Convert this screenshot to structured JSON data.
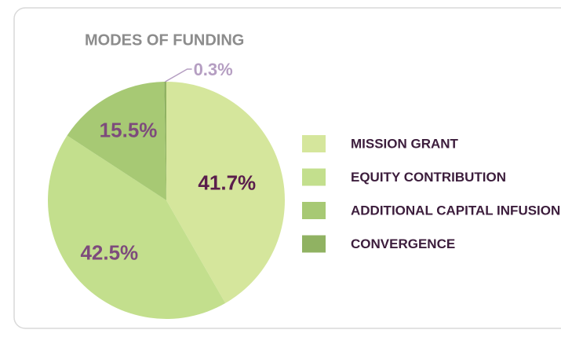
{
  "chart_data": {
    "type": "pie",
    "title": "MODES OF FUNDING",
    "categories": [
      "MISSION GRANT",
      "EQUITY CONTRIBUTION",
      "ADDITIONAL CAPITAL INFUSION",
      "CONVERGENCE"
    ],
    "values": [
      41.7,
      42.5,
      15.5,
      0.3
    ],
    "value_labels": [
      "41.7%",
      "42.5%",
      "15.5%",
      "0.3%"
    ],
    "colors": [
      "#d5e69c",
      "#c3df8d",
      "#a7c974",
      "#90b262"
    ],
    "label_colors": [
      "#5a1e4c",
      "#7d4b7c",
      "#7d4b7c",
      "#b59ec2"
    ],
    "legend": "right"
  }
}
